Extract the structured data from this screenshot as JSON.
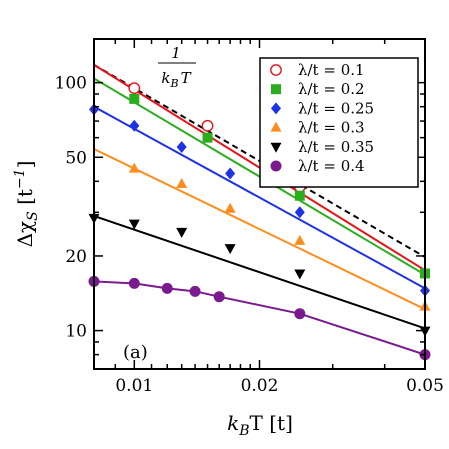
{
  "chart_data": {
    "type": "scatter",
    "title": "",
    "panel_label": "(a)",
    "xlabel": {
      "main": "k",
      "sub": "B",
      "rest": "T [t]"
    },
    "ylabel": {
      "main": "Δχ",
      "sub": "S",
      "rest": " [t",
      "sup": "−1",
      "end": "]"
    },
    "x_scale": "log",
    "y_scale": "log",
    "xlim": [
      0.008,
      0.05
    ],
    "ylim": [
      7.0,
      150.0
    ],
    "x_ticks": [
      {
        "value": 0.01,
        "label": "0.01"
      },
      {
        "value": 0.02,
        "label": "0.02"
      },
      {
        "value": 0.05,
        "label": "0.05"
      }
    ],
    "y_ticks": [
      {
        "value": 10,
        "label": "10"
      },
      {
        "value": 20,
        "label": "20"
      },
      {
        "value": 50,
        "label": "50"
      },
      {
        "value": 100,
        "label": "100"
      }
    ],
    "legend_position": "top-right",
    "reference_line": {
      "label_numerator": "1",
      "label_denominator_main": "k",
      "label_denominator_sub": "B",
      "label_denominator_rest": "T",
      "style": "dashed",
      "color": "#000000",
      "x": [
        0.008,
        0.05
      ],
      "y": [
        118,
        19.8
      ]
    },
    "series": [
      {
        "name": "λ/t = 0.1",
        "color": "#e8141c",
        "marker": "open-circle",
        "x": [
          0.01,
          0.015,
          0.025
        ],
        "y": [
          95,
          67,
          38
        ],
        "fit": {
          "x": [
            0.008,
            0.05
          ],
          "y": [
            118,
            17.5
          ]
        }
      },
      {
        "name": "λ/t = 0.2",
        "color": "#2aae1e",
        "marker": "square",
        "x": [
          0.01,
          0.015,
          0.025,
          0.05
        ],
        "y": [
          86,
          60,
          35,
          17
        ],
        "fit": {
          "x": [
            0.008,
            0.05
          ],
          "y": [
            104,
            16.8
          ]
        }
      },
      {
        "name": "λ/t = 0.25",
        "color": "#1e32e6",
        "marker": "diamond",
        "x": [
          0.008,
          0.01,
          0.013,
          0.017,
          0.025,
          0.05
        ],
        "y": [
          78,
          67,
          55,
          43,
          30,
          14.5
        ],
        "fit": {
          "x": [
            0.008,
            0.05
          ],
          "y": [
            80,
            14.8
          ]
        }
      },
      {
        "name": "λ/t = 0.3",
        "color": "#ff8c1e",
        "marker": "triangle-up",
        "x": [
          0.01,
          0.013,
          0.017,
          0.025,
          0.05
        ],
        "y": [
          45,
          39,
          31,
          23,
          12.5
        ],
        "fit": {
          "x": [
            0.008,
            0.05
          ],
          "y": [
            54,
            12.2
          ]
        }
      },
      {
        "name": "λ/t = 0.35",
        "color": "#000000",
        "marker": "triangle-down",
        "x": [
          0.008,
          0.01,
          0.013,
          0.017,
          0.025,
          0.05
        ],
        "y": [
          28.5,
          27,
          25,
          21.5,
          17,
          10
        ],
        "fit": {
          "x": [
            0.008,
            0.05
          ],
          "y": [
            29,
            10.2
          ]
        }
      },
      {
        "name": "λ/t = 0.4",
        "color": "#7a1a8e",
        "marker": "circle",
        "x": [
          0.008,
          0.01,
          0.012,
          0.014,
          0.016,
          0.025,
          0.05
        ],
        "y": [
          15.8,
          15.5,
          14.8,
          14.4,
          13.7,
          11.7,
          8.0
        ],
        "fit": {
          "x": [
            0.008,
            0.01,
            0.012,
            0.014,
            0.016,
            0.025,
            0.05
          ],
          "y": [
            15.8,
            15.5,
            14.8,
            14.4,
            13.7,
            11.7,
            8.0
          ]
        }
      }
    ]
  }
}
